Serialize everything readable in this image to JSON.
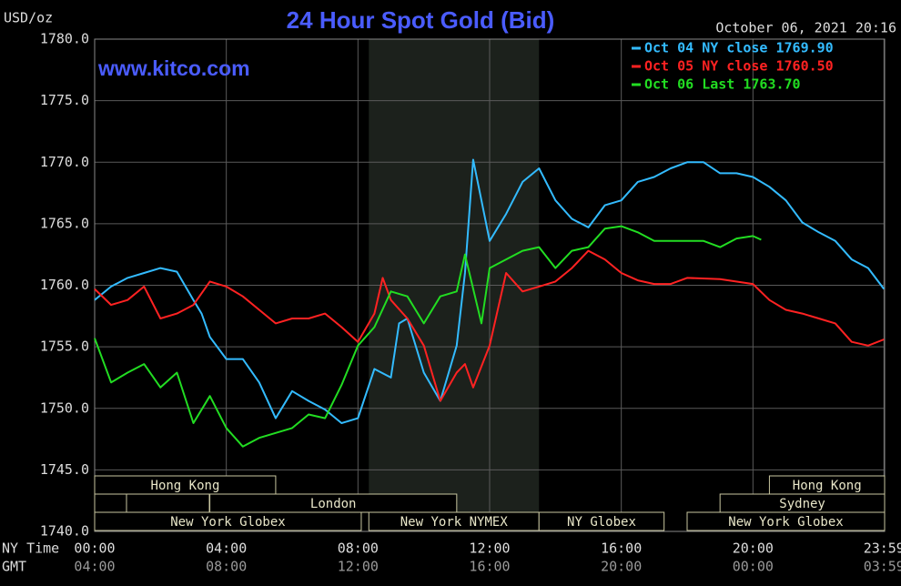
{
  "chart_data": {
    "type": "line",
    "title": "24 Hour Spot Gold (Bid)",
    "unit_label": "USD/oz",
    "timestamp": "October 06, 2021 20:16",
    "website": "www.kitco.com",
    "x_row_labels": [
      "NY Time",
      "GMT"
    ],
    "xlim": [
      0,
      24
    ],
    "xticks": [
      {
        "value": 0,
        "label": "00:00"
      },
      {
        "value": 4,
        "label": "04:00"
      },
      {
        "value": 8,
        "label": "08:00"
      },
      {
        "value": 12,
        "label": "12:00"
      },
      {
        "value": 16,
        "label": "16:00"
      },
      {
        "value": 20,
        "label": "20:00"
      },
      {
        "value": 23.98,
        "label": "23:59"
      }
    ],
    "gmt_labels": [
      "04:00",
      "08:00",
      "12:00",
      "16:00",
      "20:00",
      "00:00",
      "03:59"
    ],
    "ylim": [
      1740,
      1780
    ],
    "yticks": [
      {
        "value": 1740,
        "label": "1740.0"
      },
      {
        "value": 1745,
        "label": "1745.0"
      },
      {
        "value": 1750,
        "label": "1750.0"
      },
      {
        "value": 1755,
        "label": "1755.0"
      },
      {
        "value": 1760,
        "label": "1760.0"
      },
      {
        "value": 1765,
        "label": "1765.0"
      },
      {
        "value": 1770,
        "label": "1770.0"
      },
      {
        "value": 1775,
        "label": "1775.0"
      },
      {
        "value": 1780,
        "label": "1780.0"
      }
    ],
    "grid": true,
    "legend": "top-right",
    "shaded_range": [
      8.33,
      13.5
    ],
    "sessions": [
      [
        {
          "name": "Hong Kong",
          "start": 0,
          "end": 5.5
        },
        {
          "name": "Hong Kong",
          "start": 20.5,
          "end": 24
        }
      ],
      [
        {
          "name": "London",
          "start": 3.5,
          "end": 11
        },
        {
          "name": "Sydney",
          "start": 19,
          "end": 24
        }
      ],
      [
        {
          "name": "New York Globex",
          "start": 0,
          "end": 8.1
        },
        {
          "name": "New York NYMEX",
          "start": 8.33,
          "end": 13.5
        },
        {
          "name": "NY Globex",
          "start": 13.5,
          "end": 17.3
        },
        {
          "name": "New York Globex",
          "start": 18,
          "end": 24
        }
      ]
    ],
    "series": [
      {
        "name": "Oct 04 NY close 1769.90",
        "color": "#33bbff",
        "x": [
          0,
          0.5,
          1,
          1.5,
          2,
          2.5,
          3,
          3.25,
          3.5,
          4,
          4.5,
          5,
          5.5,
          6,
          6.5,
          7,
          7.5,
          8,
          8.5,
          9,
          9.25,
          9.5,
          10,
          10.5,
          11,
          11.25,
          11.5,
          11.75,
          12,
          12.5,
          13,
          13.5,
          14,
          14.5,
          15,
          15.5,
          16,
          16.5,
          17,
          17.5,
          18,
          18.5,
          19,
          19.5,
          20,
          20.5,
          21,
          21.5,
          22,
          22.5,
          23,
          23.5,
          23.98
        ],
        "values": [
          1758.8,
          1759.9,
          1760.6,
          1761.0,
          1761.4,
          1761.1,
          1758.8,
          1757.7,
          1755.8,
          1754.0,
          1754.0,
          1752.1,
          1749.2,
          1751.4,
          1750.6,
          1749.9,
          1748.8,
          1749.2,
          1753.2,
          1752.5,
          1756.9,
          1757.3,
          1752.9,
          1750.6,
          1755.1,
          1761.0,
          1770.2,
          1766.9,
          1763.6,
          1765.8,
          1768.4,
          1769.5,
          1766.9,
          1765.4,
          1764.7,
          1766.5,
          1766.9,
          1768.4,
          1768.8,
          1769.5,
          1770.0,
          1770.0,
          1769.1,
          1769.1,
          1768.8,
          1768.0,
          1766.9,
          1765.1,
          1764.3,
          1763.6,
          1762.1,
          1761.4,
          1759.7
        ]
      },
      {
        "name": "Oct 05 NY close 1760.50",
        "color": "#ff2222",
        "x": [
          0,
          0.5,
          1,
          1.5,
          2,
          2.5,
          3,
          3.5,
          4,
          4.5,
          5,
          5.5,
          6,
          6.5,
          7,
          7.5,
          8,
          8.5,
          8.75,
          9,
          9.5,
          10,
          10.5,
          11,
          11.25,
          11.5,
          12,
          12.5,
          13,
          13.5,
          14,
          14.5,
          15,
          15.5,
          16,
          16.5,
          17,
          17.5,
          18,
          19,
          20,
          20.5,
          21,
          21.5,
          22,
          22.5,
          23,
          23.5,
          23.98
        ],
        "values": [
          1759.7,
          1758.4,
          1758.8,
          1759.9,
          1757.3,
          1757.7,
          1758.4,
          1760.3,
          1759.9,
          1759.1,
          1758.0,
          1756.9,
          1757.3,
          1757.3,
          1757.7,
          1756.6,
          1755.4,
          1757.7,
          1760.6,
          1758.8,
          1757.3,
          1755.1,
          1750.6,
          1752.9,
          1753.6,
          1751.7,
          1755.1,
          1761.0,
          1759.5,
          1759.9,
          1760.3,
          1761.4,
          1762.8,
          1762.1,
          1761.0,
          1760.4,
          1760.1,
          1760.1,
          1760.6,
          1760.5,
          1760.1,
          1758.8,
          1758.0,
          1757.7,
          1757.3,
          1756.9,
          1755.4,
          1755.1,
          1755.6
        ]
      },
      {
        "name": "Oct 06 Last 1763.70",
        "color": "#22dd22",
        "x": [
          0,
          0.5,
          1,
          1.5,
          2,
          2.5,
          3,
          3.5,
          4,
          4.5,
          5,
          5.5,
          6,
          6.5,
          7,
          7.5,
          8,
          8.5,
          9,
          9.5,
          10,
          10.5,
          11,
          11.25,
          11.75,
          12,
          12.5,
          13,
          13.5,
          14,
          14.5,
          15,
          15.5,
          16,
          16.5,
          17,
          17.5,
          18,
          18.5,
          19,
          19.5,
          20,
          20.25
        ],
        "values": [
          1755.7,
          1752.1,
          1752.9,
          1753.6,
          1751.7,
          1752.9,
          1748.8,
          1751.0,
          1748.4,
          1746.9,
          1747.6,
          1748.0,
          1748.4,
          1749.5,
          1749.2,
          1751.9,
          1755.1,
          1756.6,
          1759.5,
          1759.1,
          1756.9,
          1759.1,
          1759.5,
          1762.5,
          1756.9,
          1761.4,
          1762.1,
          1762.8,
          1763.1,
          1761.4,
          1762.8,
          1763.1,
          1764.6,
          1764.8,
          1764.3,
          1763.6,
          1763.6,
          1763.6,
          1763.6,
          1763.1,
          1763.8,
          1764.0,
          1763.7
        ]
      }
    ]
  }
}
